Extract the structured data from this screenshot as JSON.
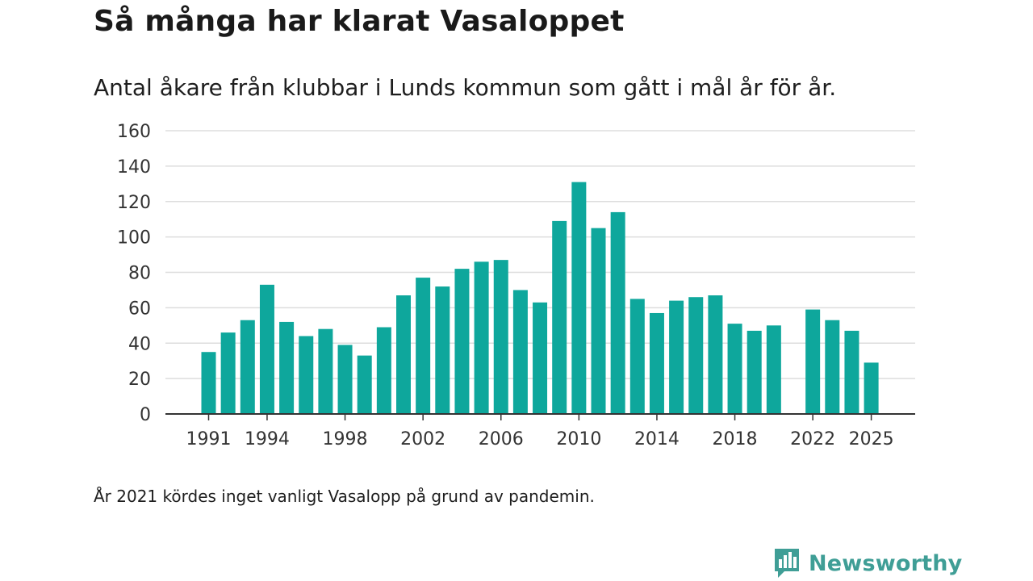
{
  "header": {
    "title": "Så många har klarat Vasaloppet",
    "subtitle": "Antal åkare från klubbar i Lunds kommun som gått i mål år för år."
  },
  "footer": {
    "note": "År 2021 kördes inget vanligt Vasalopp på grund av pandemin.",
    "brand": "Newsworthy"
  },
  "colors": {
    "bar": "#0ea79c",
    "grid": "#dddddd",
    "axis": "#333333",
    "brand": "#3f9e96"
  },
  "chart_data": {
    "type": "bar",
    "title": "Så många har klarat Vasaloppet",
    "subtitle": "Antal åkare från klubbar i Lunds kommun som gått i mål år för år.",
    "xlabel": "",
    "ylabel": "",
    "ylim": [
      0,
      160
    ],
    "yticks": [
      0,
      20,
      40,
      60,
      80,
      100,
      120,
      140,
      160
    ],
    "xticks": [
      1991,
      1994,
      1998,
      2002,
      2006,
      2010,
      2014,
      2018,
      2022,
      2025
    ],
    "grid": true,
    "categories": [
      1991,
      1992,
      1993,
      1994,
      1995,
      1996,
      1997,
      1998,
      1999,
      2000,
      2001,
      2002,
      2003,
      2004,
      2005,
      2006,
      2007,
      2008,
      2009,
      2010,
      2011,
      2012,
      2013,
      2014,
      2015,
      2016,
      2017,
      2018,
      2019,
      2020,
      2021,
      2022,
      2023,
      2024,
      2025
    ],
    "values": [
      35,
      46,
      53,
      73,
      52,
      44,
      48,
      39,
      33,
      49,
      67,
      77,
      72,
      82,
      86,
      87,
      70,
      63,
      109,
      131,
      105,
      114,
      65,
      57,
      64,
      66,
      67,
      51,
      47,
      50,
      null,
      59,
      53,
      47,
      29
    ]
  }
}
